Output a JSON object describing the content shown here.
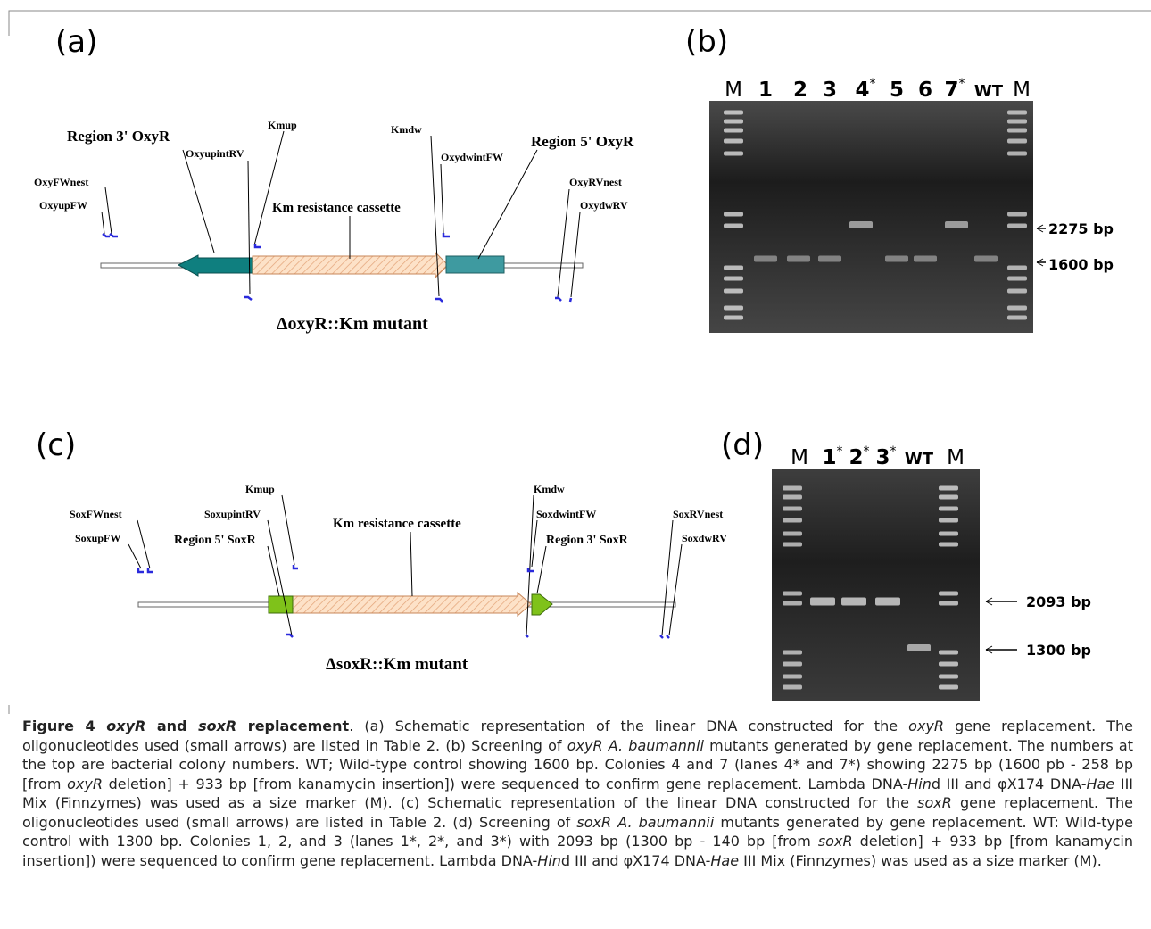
{
  "panels": {
    "a": {
      "label": "(a)",
      "region_left": "Region 3' OxyR",
      "region_right": "Region 5' OxyR",
      "primers": [
        "Kmup",
        "OxyupintRV",
        "Kmdw",
        "OxydwintFW",
        "OxyFWnest",
        "OxyupFW",
        "OxyRVnest",
        "OxydwRV"
      ],
      "cassette": "Km resistance cassette",
      "title": "ΔoxyR::Km mutant"
    },
    "b": {
      "label": "(b)",
      "lanes": [
        {
          "text": "M"
        },
        {
          "text": "1"
        },
        {
          "text": "2"
        },
        {
          "text": "3"
        },
        {
          "text": "4",
          "sup": "*"
        },
        {
          "text": "5"
        },
        {
          "text": "6"
        },
        {
          "text": "7",
          "sup": "*"
        },
        {
          "text": "WT"
        },
        {
          "text": "M"
        }
      ],
      "sizes": [
        "2275 bp",
        "1600 bp"
      ]
    },
    "c": {
      "label": "(c)",
      "region_left": "Region 5' SoxR",
      "region_right": "Region 3' SoxR",
      "primers": [
        "SoxFWnest",
        "SoxupFW",
        "Kmup",
        "SoxupintRV",
        "Kmdw",
        "SoxdwintFW",
        "SoxRVnest",
        "SoxdwRV"
      ],
      "cassette": "Km resistance cassette",
      "title": "ΔsoxR::Km mutant"
    },
    "d": {
      "label": "(d)",
      "lanes": [
        {
          "text": "M"
        },
        {
          "text": "1",
          "sup": "*"
        },
        {
          "text": "2",
          "sup": "*"
        },
        {
          "text": "3",
          "sup": "*"
        },
        {
          "text": "WT"
        },
        {
          "text": "M"
        }
      ],
      "sizes": [
        "2093 bp",
        "1300 bp"
      ]
    }
  },
  "caption": [
    "Figure 4 ",
    "oxyR",
    " and ",
    "soxR",
    " replacement",
    ". (a) Schematic representation of the linear DNA constructed for the ",
    "oxyR",
    " gene replacement. The oligonucleotides used (small arrows) are listed in Table 2. (b) Screening of ",
    "oxyR A. baumannii",
    " mutants generated by gene replacement. The numbers at the top are bacterial colony numbers. WT; Wild-type control showing 1600 bp. Colonies 4 and 7 (lanes 4* and 7*) showing 2275 bp (1600 pb - 258 bp [from ",
    "oxyR",
    " deletion] + 933 bp [from kanamycin insertion]) were sequenced to confirm gene replacement. Lambda DNA-",
    "Hin",
    "d III and φX174 DNA-",
    "Hae",
    " III Mix (Finnzymes) was used as a size marker (M). (c) Schematic representation of the linear DNA constructed for the ",
    "soxR",
    " gene replacement. The oligonucleotides used (small arrows) are listed in Table 2. (d) Screening of ",
    "soxR A. baumannii",
    " mutants generated by gene replacement. WT: Wild-type control with 1300 bp. Colonies 1, 2, and 3 (lanes 1*, 2*, and 3*) with 2093 bp (1300 bp - 140 bp [from ",
    "soxR",
    " deletion] + 933 bp [from kanamycin insertion]) were sequenced to confirm gene replacement. Lambda DNA-",
    "Hin",
    "d III and φX174 DNA-",
    "Hae",
    " III Mix (Finnzymes) was used as a size marker (M)."
  ]
}
